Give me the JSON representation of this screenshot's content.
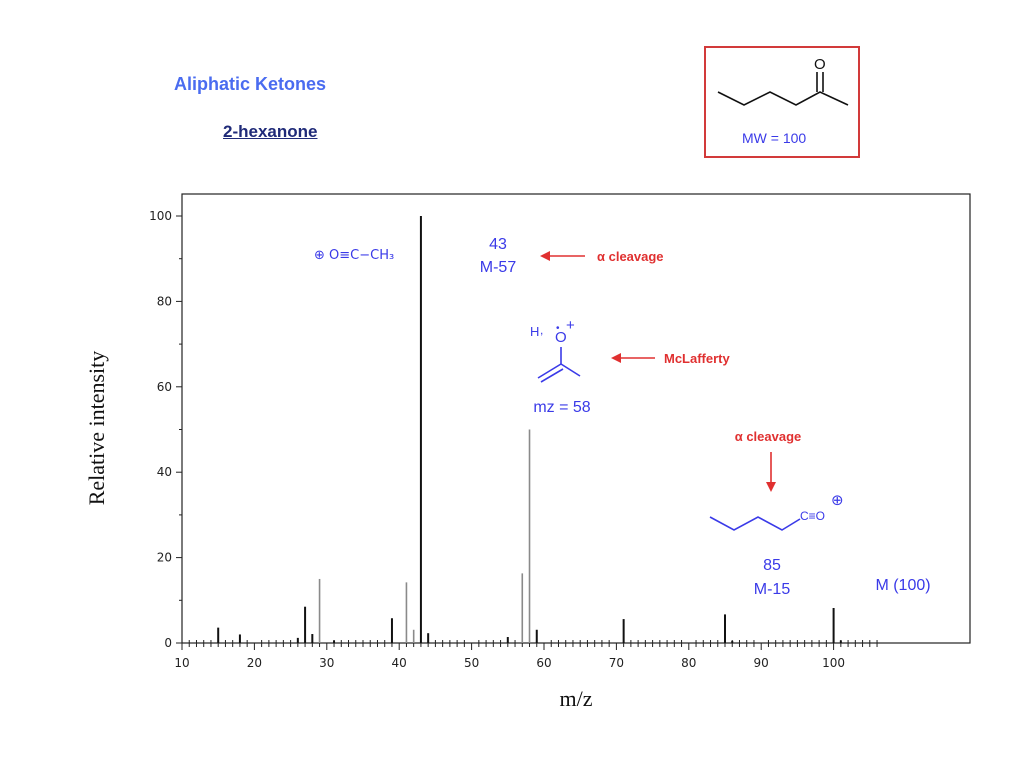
{
  "header": {
    "title": "Aliphatic Ketones",
    "compound": "2-hexanone",
    "mw_label": "MW = 100"
  },
  "colors": {
    "title_blue": "#4a6cf0",
    "annotation_blue": "#3a3ae8",
    "annotation_red": "#e03030",
    "frame_red": "#d23a3a"
  },
  "chart_data": {
    "type": "bar",
    "xlabel": "m/z",
    "ylabel": "Relative intensity",
    "xlim": [
      10,
      107
    ],
    "ylim": [
      0,
      100
    ],
    "xticks": [
      10,
      20,
      30,
      40,
      50,
      60,
      70,
      80,
      90,
      100
    ],
    "yticks": [
      0,
      20,
      40,
      60,
      80,
      100
    ],
    "grid": false,
    "peaks": [
      {
        "mz": 15,
        "intensity": 3.6,
        "series": "black"
      },
      {
        "mz": 18,
        "intensity": 2.0,
        "series": "black"
      },
      {
        "mz": 26,
        "intensity": 1.2,
        "series": "black"
      },
      {
        "mz": 27,
        "intensity": 8.5,
        "series": "black"
      },
      {
        "mz": 28,
        "intensity": 2.1,
        "series": "black"
      },
      {
        "mz": 29,
        "intensity": 15,
        "series": "gray"
      },
      {
        "mz": 31,
        "intensity": 0.6,
        "series": "black"
      },
      {
        "mz": 39,
        "intensity": 5.8,
        "series": "black"
      },
      {
        "mz": 41,
        "intensity": 14.2,
        "series": "gray"
      },
      {
        "mz": 42,
        "intensity": 3.1,
        "series": "gray"
      },
      {
        "mz": 43,
        "intensity": 100,
        "series": "black"
      },
      {
        "mz": 44,
        "intensity": 2.3,
        "series": "black"
      },
      {
        "mz": 55,
        "intensity": 1.4,
        "series": "black"
      },
      {
        "mz": 57,
        "intensity": 16.3,
        "series": "gray"
      },
      {
        "mz": 58,
        "intensity": 50,
        "series": "gray"
      },
      {
        "mz": 59,
        "intensity": 3.1,
        "series": "black"
      },
      {
        "mz": 71,
        "intensity": 5.6,
        "series": "black"
      },
      {
        "mz": 85,
        "intensity": 6.7,
        "series": "black"
      },
      {
        "mz": 86,
        "intensity": 0.5,
        "series": "black"
      },
      {
        "mz": 100,
        "intensity": 8.2,
        "series": "black"
      },
      {
        "mz": 101,
        "intensity": 0.6,
        "series": "black"
      }
    ],
    "annotations": [
      {
        "id": "mz43",
        "lines": [
          "43",
          "M-57"
        ],
        "color": "blue"
      },
      {
        "id": "acylium43",
        "text": "⊕ O≡C−CH₃",
        "color": "blue"
      },
      {
        "id": "alpha1",
        "text": "α cleavage",
        "color": "red"
      },
      {
        "id": "mclafferty",
        "text": "McLafferty",
        "color": "red"
      },
      {
        "id": "mz58",
        "text": "mz = 58",
        "color": "blue"
      },
      {
        "id": "alpha2",
        "text": "α cleavage",
        "color": "red"
      },
      {
        "id": "mz85",
        "lines": [
          "85",
          "M-15"
        ],
        "color": "blue"
      },
      {
        "id": "molecular",
        "text": "M (100)",
        "color": "blue"
      }
    ]
  }
}
